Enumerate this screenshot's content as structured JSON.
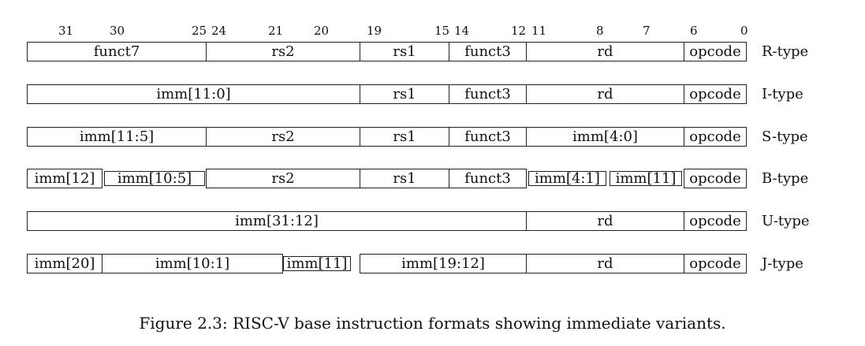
{
  "bit_numbers": [
    "31",
    "30",
    "25",
    "24",
    "21",
    "20",
    "19",
    "15",
    "14",
    "12",
    "11",
    "8",
    "7",
    "6",
    "0"
  ],
  "formats": [
    {
      "label": "R-type",
      "fields": [
        {
          "text": "funct7"
        },
        {
          "text": "rs2"
        },
        {
          "text": "rs1"
        },
        {
          "text": "funct3"
        },
        {
          "text": "rd"
        },
        {
          "text": "opcode"
        }
      ]
    },
    {
      "label": "I-type",
      "fields": [
        {
          "text": "imm[11:0]"
        },
        {
          "text": "rs1"
        },
        {
          "text": "funct3"
        },
        {
          "text": "rd"
        },
        {
          "text": "opcode"
        }
      ]
    },
    {
      "label": "S-type",
      "fields": [
        {
          "text": "imm[11:5]"
        },
        {
          "text": "rs2"
        },
        {
          "text": "rs1"
        },
        {
          "text": "funct3"
        },
        {
          "text": "imm[4:0]"
        },
        {
          "text": "opcode"
        }
      ]
    },
    {
      "label": "B-type",
      "fields": [
        {
          "text": "imm[12]"
        },
        {
          "text": "imm[10:5]"
        },
        {
          "text": "rs2"
        },
        {
          "text": "rs1"
        },
        {
          "text": "funct3"
        },
        {
          "text": "imm[4:1]"
        },
        {
          "text": "imm[11]"
        },
        {
          "text": "opcode"
        }
      ]
    },
    {
      "label": "U-type",
      "fields": [
        {
          "text": "imm[31:12]"
        },
        {
          "text": "rd"
        },
        {
          "text": "opcode"
        }
      ]
    },
    {
      "label": "J-type",
      "fields": [
        {
          "text": "imm[20]"
        },
        {
          "text": "imm[10:1]"
        },
        {
          "text": "imm[11]"
        },
        {
          "text": "imm[19:12]"
        },
        {
          "text": "rd"
        },
        {
          "text": "opcode"
        }
      ]
    }
  ],
  "caption": "Figure 2.3: RISC-V base instruction formats showing immediate variants."
}
